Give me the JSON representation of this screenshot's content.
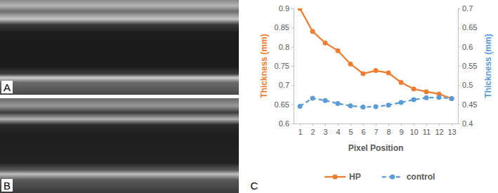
{
  "panel_labels": [
    "A",
    "B",
    "C"
  ],
  "chart_data": {
    "type": "line",
    "categories": [
      "1",
      "2",
      "3",
      "4",
      "5",
      "6",
      "7",
      "8",
      "9",
      "10",
      "11",
      "12",
      "13"
    ],
    "x_label": "Pixel Position",
    "y_label": "Thickness (mm)",
    "y2_label": "Thickness (mm)",
    "ylim": [
      0.6,
      0.9
    ],
    "yticks": [
      0.6,
      0.65,
      0.7,
      0.75,
      0.8,
      0.85,
      0.9
    ],
    "y2lim": [
      0.4,
      0.7
    ],
    "y2ticks": [
      0.4,
      0.45,
      0.5,
      0.55,
      0.6,
      0.65,
      0.7
    ],
    "grid": false,
    "legend": "bottom",
    "series": [
      {
        "name": "HP",
        "color": "#ed7d31",
        "marker": "circle",
        "line_style": "solid",
        "values": [
          0.9,
          0.84,
          0.81,
          0.79,
          0.755,
          0.73,
          0.738,
          0.732,
          0.707,
          0.69,
          0.683,
          0.677,
          0.665
        ]
      },
      {
        "name": "control",
        "color": "#5b9bd5",
        "marker": "circle",
        "line_style": "dashed",
        "axis": "y2",
        "values": [
          0.445,
          0.466,
          0.46,
          0.452,
          0.446,
          0.443,
          0.444,
          0.448,
          0.455,
          0.462,
          0.467,
          0.468,
          0.465
        ]
      }
    ]
  }
}
